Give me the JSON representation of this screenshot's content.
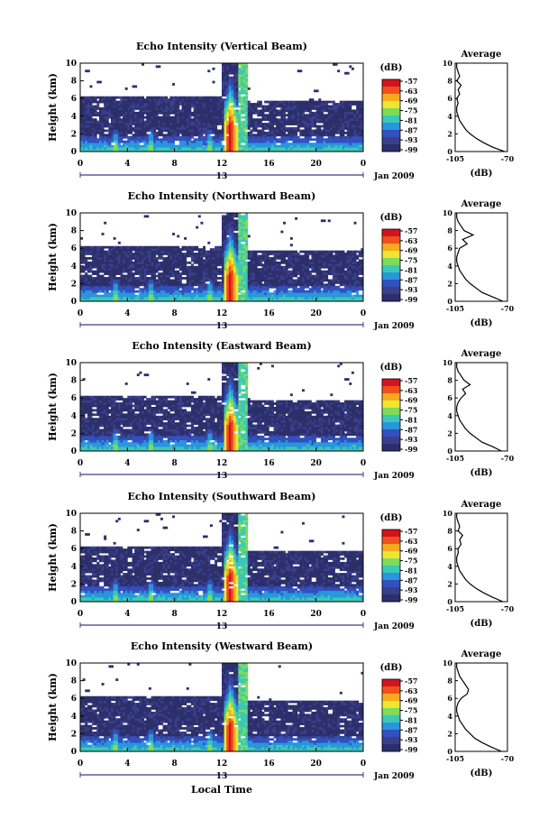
{
  "figure": {
    "colorbar_unit": "(dB)",
    "colorbar_ticks": [
      "-57",
      "-63",
      "-69",
      "-75",
      "-81",
      "-87",
      "-93",
      "-99"
    ],
    "colorbar_colors": [
      "#d2141e",
      "#f0501e",
      "#f6aa1e",
      "#f0e632",
      "#7ddc5a",
      "#3cc8b4",
      "#2896dc",
      "#3250be",
      "#3a3f8c",
      "#2c2f6a"
    ],
    "date_label": "Jan 2009",
    "xlabel": "Local Time",
    "ylabel": "Height (km)",
    "date_tick": "13",
    "profile_title": "Average",
    "profile_xlabel": "(dB)",
    "profile_xticks": [
      "-105",
      "-70"
    ],
    "x_ticks": [
      "0",
      "4",
      "8",
      "12",
      "16",
      "20",
      "0"
    ],
    "y_ticks": [
      "0",
      "2",
      "4",
      "6",
      "8",
      "10"
    ]
  },
  "chart_data": [
    {
      "type": "heatmap",
      "title": "Echo Intensity (Vertical Beam)",
      "x_range_hours": [
        0,
        24
      ],
      "y_range_km": [
        0,
        10
      ],
      "colorbar_range_db": [
        -99,
        -57
      ],
      "profile": {
        "title": "Average",
        "xlim": [
          -105,
          -70
        ],
        "height_km": [
          0,
          0.5,
          1,
          1.5,
          2,
          2.5,
          3,
          3.5,
          4,
          4.5,
          5,
          5.5,
          6,
          6.5,
          7,
          7.5,
          8,
          8.5,
          9,
          9.5,
          10
        ],
        "db": [
          -72,
          -80,
          -86,
          -91,
          -95,
          -98,
          -100,
          -102,
          -103,
          -104,
          -104,
          -103,
          -104,
          -102,
          -103,
          -101,
          -104,
          -102,
          -103,
          -104,
          -104
        ]
      }
    },
    {
      "type": "heatmap",
      "title": "Echo Intensity (Northward Beam)",
      "x_range_hours": [
        0,
        24
      ],
      "y_range_km": [
        0,
        10
      ],
      "colorbar_range_db": [
        -99,
        -57
      ],
      "profile": {
        "title": "Average",
        "xlim": [
          -105,
          -70
        ],
        "height_km": [
          0,
          0.5,
          1,
          1.5,
          2,
          2.5,
          3,
          3.5,
          4,
          4.5,
          5,
          5.5,
          6,
          6.5,
          7,
          7.5,
          8,
          8.5,
          9,
          9.5,
          10
        ],
        "db": [
          -73,
          -80,
          -87,
          -91,
          -95,
          -98,
          -100,
          -102,
          -103,
          -104,
          -104,
          -103,
          -102,
          -97,
          -100,
          -93,
          -99,
          -101,
          -103,
          -104,
          -104
        ]
      }
    },
    {
      "type": "heatmap",
      "title": "Echo Intensity (Eastward Beam)",
      "x_range_hours": [
        0,
        24
      ],
      "y_range_km": [
        0,
        10
      ],
      "colorbar_range_db": [
        -99,
        -57
      ],
      "profile": {
        "title": "Average",
        "xlim": [
          -105,
          -70
        ],
        "height_km": [
          0,
          0.5,
          1,
          1.5,
          2,
          2.5,
          3,
          3.5,
          4,
          4.5,
          5,
          5.5,
          6,
          6.5,
          7,
          7.5,
          8,
          8.5,
          9,
          9.5,
          10
        ],
        "db": [
          -74,
          -80,
          -87,
          -91,
          -95,
          -98,
          -100,
          -102,
          -103,
          -104,
          -104,
          -103,
          -101,
          -98,
          -100,
          -95,
          -99,
          -101,
          -103,
          -104,
          -104
        ]
      }
    },
    {
      "type": "heatmap",
      "title": "Echo Intensity (Southward Beam)",
      "x_range_hours": [
        0,
        24
      ],
      "y_range_km": [
        0,
        10
      ],
      "colorbar_range_db": [
        -99,
        -57
      ],
      "profile": {
        "title": "Average",
        "xlim": [
          -105,
          -70
        ],
        "height_km": [
          0,
          0.5,
          1,
          1.5,
          2,
          2.5,
          3,
          3.5,
          4,
          4.5,
          5,
          5.5,
          6,
          6.5,
          7,
          7.5,
          8,
          8.5,
          9,
          9.5,
          10
        ],
        "db": [
          -73,
          -80,
          -86,
          -91,
          -95,
          -98,
          -100,
          -102,
          -103,
          -104,
          -104,
          -103,
          -103,
          -101,
          -102,
          -100,
          -103,
          -102,
          -103,
          -104,
          -104
        ]
      }
    },
    {
      "type": "heatmap",
      "title": "Echo Intensity (Westward Beam)",
      "x_range_hours": [
        0,
        24
      ],
      "y_range_km": [
        0,
        10
      ],
      "colorbar_range_db": [
        -99,
        -57
      ],
      "profile": {
        "title": "Average",
        "xlim": [
          -105,
          -70
        ],
        "height_km": [
          0,
          0.5,
          1,
          1.5,
          2,
          2.5,
          3,
          3.5,
          4,
          4.5,
          5,
          5.5,
          6,
          6.5,
          7,
          7.5,
          8,
          8.5,
          9,
          9.5,
          10
        ],
        "db": [
          -74,
          -81,
          -87,
          -92,
          -95,
          -98,
          -100,
          -102,
          -103,
          -104,
          -104,
          -103,
          -101,
          -97,
          -96,
          -98,
          -100,
          -102,
          -103,
          -104,
          -104
        ]
      }
    }
  ]
}
